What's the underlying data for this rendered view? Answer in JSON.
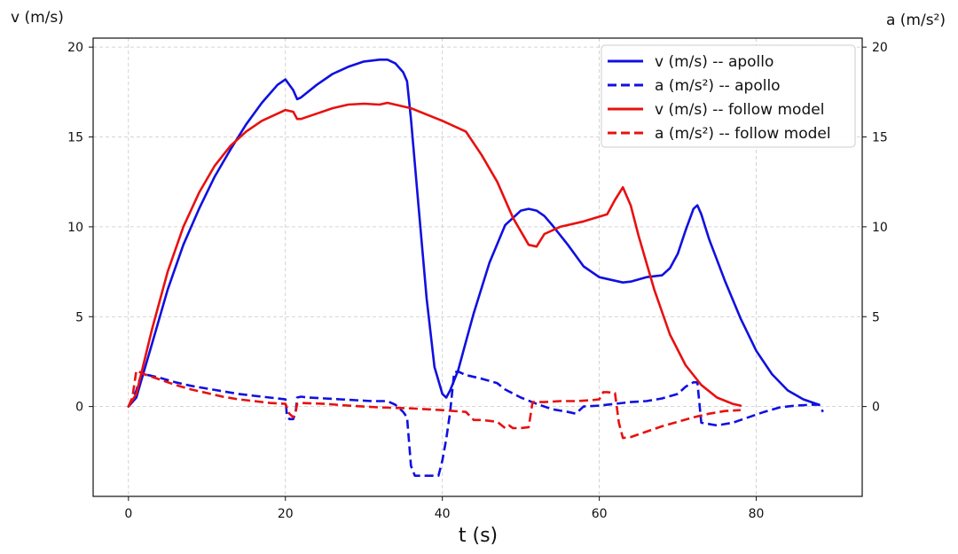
{
  "chart_data": {
    "type": "line",
    "xlabel": "t (s)",
    "ylabel_left": "v (m/s)",
    "ylabel_right": "a (m/s²)",
    "xlim": [
      -4.5,
      93.5
    ],
    "ylim": [
      -5,
      20.5
    ],
    "xticks": [
      0,
      20,
      40,
      60,
      80
    ],
    "yticks": [
      0,
      5,
      10,
      15,
      20
    ],
    "grid": true,
    "legend_position": "top-right",
    "series": [
      {
        "name": "v (m/s) -- apollo",
        "color": "#1010e0",
        "dash": "solid",
        "x": [
          0,
          1,
          2,
          3,
          5,
          7,
          9,
          11,
          13,
          15,
          17,
          19,
          20,
          21,
          21.5,
          22,
          24,
          26,
          28,
          30,
          32,
          33,
          34,
          35,
          35.5,
          36,
          37,
          38,
          39,
          40,
          40.5,
          41,
          42,
          43,
          44,
          46,
          48,
          50,
          51,
          52,
          53,
          54,
          56,
          58,
          60,
          62,
          63,
          64,
          66,
          68,
          69,
          70,
          71,
          72,
          72.5,
          73,
          74,
          76,
          78,
          80,
          82,
          84,
          86,
          88
        ],
        "values": [
          0,
          0.5,
          2,
          3.5,
          6.5,
          9,
          11,
          12.8,
          14.3,
          15.7,
          16.9,
          17.9,
          18.2,
          17.6,
          17.1,
          17.2,
          17.9,
          18.5,
          18.9,
          19.2,
          19.3,
          19.3,
          19.1,
          18.6,
          18.1,
          16,
          11,
          6,
          2.2,
          0.7,
          0.5,
          0.9,
          2,
          3.6,
          5.2,
          8,
          10.1,
          10.9,
          11,
          10.9,
          10.6,
          10.1,
          9,
          7.8,
          7.2,
          7,
          6.9,
          6.95,
          7.2,
          7.3,
          7.7,
          8.5,
          9.8,
          11,
          11.2,
          10.7,
          9.3,
          7,
          4.9,
          3.1,
          1.8,
          0.9,
          0.4,
          0.1
        ]
      },
      {
        "name": "a (m/s²) -- apollo",
        "color": "#1010e0",
        "dash": "dashed",
        "x": [
          0,
          0.5,
          1,
          1.5,
          2,
          4,
          6,
          8,
          10,
          12,
          14,
          16,
          18,
          19,
          20,
          20.2,
          20.5,
          21,
          21.3,
          21.5,
          22,
          23,
          25,
          27,
          29,
          31,
          32,
          33,
          34,
          35,
          35.5,
          36,
          36.5,
          37,
          38,
          39,
          39.5,
          40,
          40.5,
          41,
          41.5,
          42,
          43,
          45,
          47,
          48,
          50,
          52,
          54,
          56,
          57,
          58,
          60,
          62,
          64,
          66,
          68,
          70,
          71,
          72,
          72.5,
          73,
          75,
          77,
          79,
          81,
          83,
          85,
          87,
          88,
          88.5
        ],
        "values": [
          0,
          0.3,
          0.9,
          1.6,
          1.8,
          1.6,
          1.35,
          1.15,
          1.0,
          0.85,
          0.7,
          0.6,
          0.5,
          0.45,
          0.4,
          -0.5,
          -0.7,
          -0.7,
          -0.3,
          0.5,
          0.55,
          0.5,
          0.45,
          0.4,
          0.35,
          0.3,
          0.3,
          0.3,
          0.1,
          -0.3,
          -0.6,
          -3.3,
          -3.85,
          -3.85,
          -3.85,
          -3.85,
          -3.85,
          -3.0,
          -1.8,
          -0.3,
          1.9,
          1.95,
          1.75,
          1.55,
          1.3,
          0.95,
          0.5,
          0.15,
          -0.15,
          -0.3,
          -0.4,
          0.0,
          0.05,
          0.15,
          0.25,
          0.3,
          0.45,
          0.7,
          1.1,
          1.35,
          1.35,
          -0.9,
          -1.05,
          -0.9,
          -0.6,
          -0.3,
          -0.05,
          0.05,
          0.1,
          0.1,
          -0.3
        ]
      },
      {
        "name": "v (m/s) -- follow model",
        "color": "#e81010",
        "dash": "solid",
        "x": [
          0,
          1,
          2,
          3,
          5,
          7,
          9,
          11,
          13,
          15,
          17,
          19,
          20,
          21,
          21.5,
          22,
          24,
          26,
          28,
          30,
          32,
          33,
          36,
          40,
          43,
          45,
          47,
          49,
          51,
          52,
          53,
          55,
          58,
          61,
          62,
          63,
          64,
          65,
          67,
          69,
          71,
          73,
          75,
          77,
          78
        ],
        "values": [
          0,
          0.7,
          2.5,
          4.3,
          7.5,
          10,
          11.9,
          13.4,
          14.5,
          15.3,
          15.9,
          16.3,
          16.5,
          16.4,
          16,
          16,
          16.3,
          16.6,
          16.8,
          16.85,
          16.8,
          16.9,
          16.6,
          15.9,
          15.3,
          14,
          12.5,
          10.5,
          9,
          8.9,
          9.6,
          10,
          10.3,
          10.7,
          11.5,
          12.2,
          11.2,
          9.5,
          6.5,
          4.0,
          2.3,
          1.2,
          0.5,
          0.15,
          0.05
        ]
      },
      {
        "name": "a (m/s²) -- follow model",
        "color": "#e81010",
        "dash": "dashed",
        "x": [
          0,
          0.5,
          1,
          1.5,
          2,
          4,
          6,
          8,
          10,
          12,
          14,
          16,
          18,
          20,
          20.5,
          21,
          21.3,
          21.5,
          22,
          25,
          28,
          32,
          36,
          40,
          43,
          44,
          45,
          46,
          47,
          48,
          48.5,
          49,
          50,
          51,
          51.5,
          52,
          53,
          55,
          57,
          59,
          60,
          60.5,
          61,
          62,
          62.5,
          63,
          64,
          66,
          68,
          70,
          72,
          74,
          76,
          78
        ],
        "values": [
          0,
          0.5,
          2.0,
          1.9,
          1.8,
          1.5,
          1.2,
          0.95,
          0.75,
          0.55,
          0.4,
          0.3,
          0.2,
          0.15,
          -0.4,
          -0.6,
          -0.3,
          0.15,
          0.2,
          0.15,
          0.05,
          -0.05,
          -0.1,
          -0.2,
          -0.3,
          -0.75,
          -0.75,
          -0.8,
          -0.85,
          -1.2,
          -1.05,
          -1.2,
          -1.2,
          -1.15,
          0.25,
          0.25,
          0.25,
          0.3,
          0.3,
          0.35,
          0.4,
          0.8,
          0.8,
          0.75,
          -0.9,
          -1.75,
          -1.7,
          -1.4,
          -1.1,
          -0.85,
          -0.6,
          -0.4,
          -0.25,
          -0.2
        ]
      }
    ]
  }
}
